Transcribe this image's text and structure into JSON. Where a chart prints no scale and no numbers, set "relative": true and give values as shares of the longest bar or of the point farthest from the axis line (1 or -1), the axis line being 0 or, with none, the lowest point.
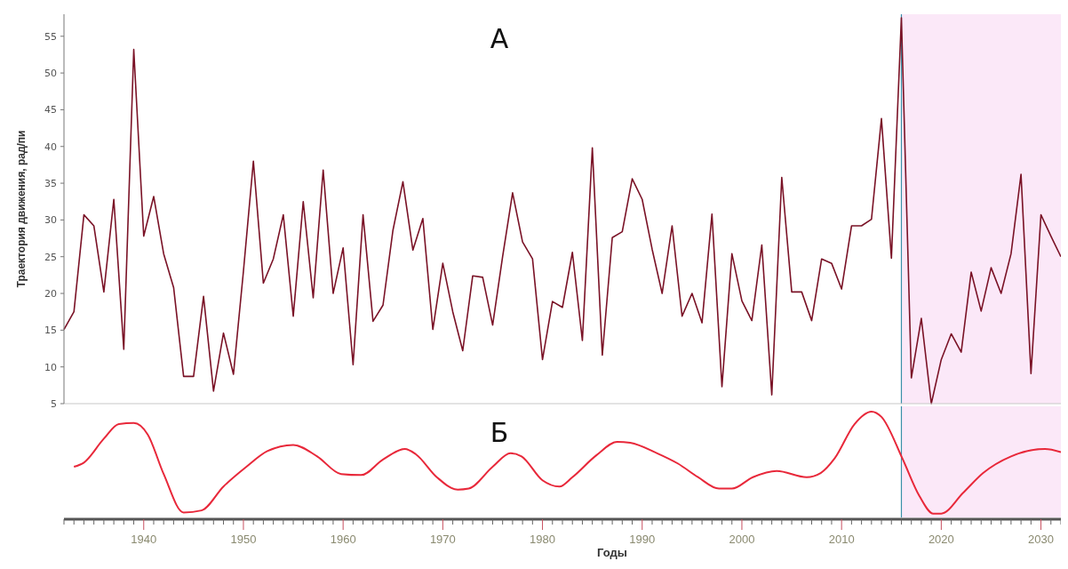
{
  "chart_data": [
    {
      "type": "line",
      "title": "А",
      "ylabel": "Траектория движения, рад/пи",
      "xlim": [
        1932,
        2032
      ],
      "ylim": [
        5,
        58
      ],
      "yticks": [
        5,
        10,
        15,
        20,
        25,
        30,
        35,
        40,
        45,
        50,
        55
      ],
      "tick_labels": "y",
      "grid": false,
      "ref_lines": [
        {
          "axis": "x",
          "value": 2016,
          "color": "#3a8fa8"
        }
      ],
      "bands": [
        {
          "axis": "x",
          "from": 2016,
          "to": 2032,
          "color": "#fbe8f8"
        }
      ],
      "series": [
        {
          "color": "#7a1226",
          "x": [
            1932,
            1933,
            1934,
            1935,
            1936,
            1937,
            1938,
            1939,
            1940,
            1941,
            1942,
            1943,
            1944,
            1945,
            1946,
            1947,
            1948,
            1949,
            1950,
            1951,
            1952,
            1953,
            1954,
            1955,
            1956,
            1957,
            1958,
            1959,
            1960,
            1961,
            1962,
            1963,
            1964,
            1965,
            1966,
            1967,
            1968,
            1969,
            1970,
            1971,
            1972,
            1973,
            1974,
            1975,
            1976,
            1977,
            1978,
            1979,
            1980,
            1981,
            1982,
            1983,
            1984,
            1985,
            1986,
            1987,
            1988,
            1989,
            1990,
            1991,
            1992,
            1993,
            1994,
            1995,
            1996,
            1997,
            1998,
            1999,
            2000,
            2001,
            2002,
            2003,
            2004,
            2005,
            2006,
            2007,
            2008,
            2009,
            2010,
            2011,
            2012,
            2013,
            2014,
            2015,
            2016,
            2017,
            2018,
            2019,
            2020,
            2021,
            2022,
            2023,
            2024,
            2025,
            2026,
            2027,
            2028,
            2029,
            2030,
            2031,
            2032
          ],
          "values": [
            15.1,
            17.5,
            30.7,
            29.2,
            20.2,
            32.8,
            12.4,
            53.2,
            27.8,
            33.2,
            25.4,
            20.8,
            8.7,
            8.7,
            19.6,
            6.7,
            14.6,
            9.0,
            23,
            38.0,
            21.4,
            24.7,
            30.7,
            16.9,
            32.5,
            19.4,
            36.8,
            20.0,
            26.2,
            10.3,
            30.7,
            16.2,
            18.4,
            28.6,
            35.2,
            25.9,
            30.2,
            15.1,
            24.1,
            17.5,
            12.2,
            22.4,
            22.2,
            15.7,
            25,
            33.7,
            27.0,
            24.7,
            11.0,
            18.9,
            18.1,
            25.6,
            13.6,
            39.8,
            11.6,
            27.6,
            28.4,
            35.6,
            32.8,
            26.0,
            20.0,
            29.2,
            16.9,
            20.0,
            16.0,
            30.8,
            7.3,
            25.4,
            19.0,
            16.3,
            26.6,
            6.2,
            35.8,
            20.2,
            20.2,
            16.3,
            24.7,
            24.1,
            20.6,
            29.2,
            29.2,
            30.1,
            43.8,
            24.8,
            57.5,
            8.5,
            16.6,
            5.0,
            11.0,
            14.5,
            12.0,
            22.9,
            17.6,
            23.5,
            20.0,
            25.4,
            36.2,
            9.1,
            30.7,
            27.8,
            25.0
          ]
        }
      ]
    },
    {
      "type": "line",
      "title": "Б",
      "xlabel": "Годы",
      "relative": true,
      "xlim": [
        1932,
        2032
      ],
      "tick_labels": "x",
      "grid": false,
      "xticks": [
        {
          "value": 1932,
          "label": null
        },
        {
          "value": 1933,
          "label": null
        },
        {
          "value": 1934,
          "label": null
        },
        {
          "value": 1935,
          "label": null
        },
        {
          "value": 1936,
          "label": null
        },
        {
          "value": 1937,
          "label": null
        },
        {
          "value": 1938,
          "label": null
        },
        {
          "value": 1939,
          "label": null
        },
        1940,
        {
          "value": 1941,
          "label": null
        },
        {
          "value": 1942,
          "label": null
        },
        {
          "value": 1943,
          "label": null
        },
        {
          "value": 1944,
          "label": null
        },
        {
          "value": 1945,
          "label": null
        },
        {
          "value": 1946,
          "label": null
        },
        {
          "value": 1947,
          "label": null
        },
        {
          "value": 1948,
          "label": null
        },
        {
          "value": 1949,
          "label": null
        },
        1950,
        {
          "value": 1951,
          "label": null
        },
        {
          "value": 1952,
          "label": null
        },
        {
          "value": 1953,
          "label": null
        },
        {
          "value": 1954,
          "label": null
        },
        {
          "value": 1955,
          "label": null
        },
        {
          "value": 1956,
          "label": null
        },
        {
          "value": 1957,
          "label": null
        },
        {
          "value": 1958,
          "label": null
        },
        {
          "value": 1959,
          "label": null
        },
        1960,
        {
          "value": 1961,
          "label": null
        },
        {
          "value": 1962,
          "label": null
        },
        {
          "value": 1963,
          "label": null
        },
        {
          "value": 1964,
          "label": null
        },
        {
          "value": 1965,
          "label": null
        },
        {
          "value": 1966,
          "label": null
        },
        {
          "value": 1967,
          "label": null
        },
        {
          "value": 1968,
          "label": null
        },
        {
          "value": 1969,
          "label": null
        },
        1970,
        {
          "value": 1971,
          "label": null
        },
        {
          "value": 1972,
          "label": null
        },
        {
          "value": 1973,
          "label": null
        },
        {
          "value": 1974,
          "label": null
        },
        {
          "value": 1975,
          "label": null
        },
        {
          "value": 1976,
          "label": null
        },
        {
          "value": 1977,
          "label": null
        },
        {
          "value": 1978,
          "label": null
        },
        {
          "value": 1979,
          "label": null
        },
        1980,
        {
          "value": 1981,
          "label": null
        },
        {
          "value": 1982,
          "label": null
        },
        {
          "value": 1983,
          "label": null
        },
        {
          "value": 1984,
          "label": null
        },
        {
          "value": 1985,
          "label": null
        },
        {
          "value": 1986,
          "label": null
        },
        {
          "value": 1987,
          "label": null
        },
        {
          "value": 1988,
          "label": null
        },
        {
          "value": 1989,
          "label": null
        },
        1990,
        {
          "value": 1991,
          "label": null
        },
        {
          "value": 1992,
          "label": null
        },
        {
          "value": 1993,
          "label": null
        },
        {
          "value": 1994,
          "label": null
        },
        {
          "value": 1995,
          "label": null
        },
        {
          "value": 1996,
          "label": null
        },
        {
          "value": 1997,
          "label": null
        },
        {
          "value": 1998,
          "label": null
        },
        {
          "value": 1999,
          "label": null
        },
        2000,
        {
          "value": 2001,
          "label": null
        },
        {
          "value": 2002,
          "label": null
        },
        {
          "value": 2003,
          "label": null
        },
        {
          "value": 2004,
          "label": null
        },
        {
          "value": 2005,
          "label": null
        },
        {
          "value": 2006,
          "label": null
        },
        {
          "value": 2007,
          "label": null
        },
        {
          "value": 2008,
          "label": null
        },
        {
          "value": 2009,
          "label": null
        },
        2010,
        {
          "value": 2011,
          "label": null
        },
        {
          "value": 2012,
          "label": null
        },
        {
          "value": 2013,
          "label": null
        },
        {
          "value": 2014,
          "label": null
        },
        {
          "value": 2015,
          "label": null
        },
        {
          "value": 2016,
          "label": null
        },
        {
          "value": 2017,
          "label": null
        },
        {
          "value": 2018,
          "label": null
        },
        {
          "value": 2019,
          "label": null
        },
        2020,
        {
          "value": 2021,
          "label": null
        },
        {
          "value": 2022,
          "label": null
        },
        {
          "value": 2023,
          "label": null
        },
        {
          "value": 2024,
          "label": null
        },
        {
          "value": 2025,
          "label": null
        },
        {
          "value": 2026,
          "label": null
        },
        {
          "value": 2027,
          "label": null
        },
        {
          "value": 2028,
          "label": null
        },
        {
          "value": 2029,
          "label": null
        },
        2030,
        {
          "value": 2031,
          "label": null
        },
        {
          "value": 2032,
          "label": null
        }
      ],
      "ref_lines": [
        {
          "axis": "x",
          "value": 2016,
          "color": "#3a8fa8"
        }
      ],
      "bands": [
        {
          "axis": "x",
          "from": 2016,
          "to": 2032,
          "color": "#fbe8f8"
        }
      ],
      "series": [
        {
          "color": "#e8283a",
          "x": [
            1933,
            1934,
            1936,
            1937.5,
            1939,
            1940.4,
            1942,
            1944,
            1945.8,
            1948,
            1950.3,
            1952.4,
            1955,
            1957.4,
            1959.8,
            1961.8,
            1964,
            1966.2,
            1967.3,
            1969.4,
            1971.5,
            1972.6,
            1975,
            1976.8,
            1977.9,
            1980,
            1981.7,
            1983,
            1985.4,
            1987.5,
            1988.8,
            1991.5,
            1993.6,
            1995.6,
            1997.7,
            1999,
            2001.1,
            2003.5,
            2006.5,
            2007.9,
            2009.3,
            2011.3,
            2013,
            2014,
            2016.1,
            2017.8,
            2019.2,
            2020,
            2022.2,
            2024.2,
            2027,
            2030.4,
            2032
          ],
          "values": [
            0.47,
            0.51,
            0.74,
            0.88,
            0.89,
            0.78,
            0.4,
            0.03,
            0.05,
            0.28,
            0.47,
            0.62,
            0.68,
            0.57,
            0.4,
            0.39,
            0.54,
            0.64,
            0.59,
            0.37,
            0.25,
            0.26,
            0.47,
            0.6,
            0.57,
            0.34,
            0.28,
            0.37,
            0.58,
            0.71,
            0.7,
            0.6,
            0.5,
            0.37,
            0.26,
            0.26,
            0.37,
            0.43,
            0.37,
            0.41,
            0.55,
            0.88,
            1,
            0.95,
            0.55,
            0.19,
            0.02,
            0.02,
            0.22,
            0.41,
            0.57,
            0.64,
            0.61
          ]
        }
      ]
    }
  ]
}
